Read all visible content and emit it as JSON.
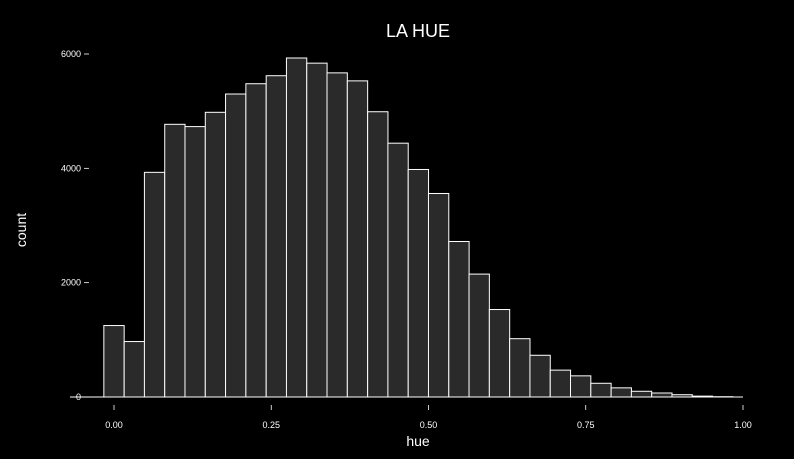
{
  "chart_data": {
    "type": "bar",
    "title": "LA HUE",
    "xlabel": "hue",
    "ylabel": "count",
    "xlim": [
      -0.04,
      1.0
    ],
    "ylim": [
      0,
      6300
    ],
    "x_ticks": [
      0.0,
      0.25,
      0.5,
      0.75,
      1.0
    ],
    "x_tick_labels": [
      "0.00",
      "0.25",
      "0.50",
      "0.75",
      "1.00"
    ],
    "y_ticks": [
      0,
      2000,
      4000,
      6000
    ],
    "y_tick_labels": [
      "0",
      "2000",
      "4000",
      "6000"
    ],
    "grid": false,
    "bin_width": 0.0323,
    "bins": [
      {
        "x": 0.0,
        "value": 1250
      },
      {
        "x": 0.0323,
        "value": 970
      },
      {
        "x": 0.0645,
        "value": 3930
      },
      {
        "x": 0.0968,
        "value": 4770
      },
      {
        "x": 0.129,
        "value": 4730
      },
      {
        "x": 0.1613,
        "value": 4980
      },
      {
        "x": 0.1935,
        "value": 5300
      },
      {
        "x": 0.2258,
        "value": 5480
      },
      {
        "x": 0.2581,
        "value": 5620
      },
      {
        "x": 0.2903,
        "value": 5930
      },
      {
        "x": 0.3226,
        "value": 5840
      },
      {
        "x": 0.3548,
        "value": 5670
      },
      {
        "x": 0.3871,
        "value": 5530
      },
      {
        "x": 0.4194,
        "value": 4990
      },
      {
        "x": 0.4516,
        "value": 4440
      },
      {
        "x": 0.4839,
        "value": 3980
      },
      {
        "x": 0.5161,
        "value": 3560
      },
      {
        "x": 0.5484,
        "value": 2720
      },
      {
        "x": 0.5806,
        "value": 2150
      },
      {
        "x": 0.6129,
        "value": 1530
      },
      {
        "x": 0.6452,
        "value": 1020
      },
      {
        "x": 0.6774,
        "value": 730
      },
      {
        "x": 0.7097,
        "value": 470
      },
      {
        "x": 0.7419,
        "value": 370
      },
      {
        "x": 0.7742,
        "value": 240
      },
      {
        "x": 0.8065,
        "value": 160
      },
      {
        "x": 0.8387,
        "value": 100
      },
      {
        "x": 0.871,
        "value": 70
      },
      {
        "x": 0.9032,
        "value": 40
      },
      {
        "x": 0.9355,
        "value": 15
      },
      {
        "x": 0.9677,
        "value": 5
      }
    ],
    "colors": {
      "background": "#000000",
      "bar_fill": "#2a2a2a",
      "bar_stroke": "#ffffff",
      "text": "#ffffff"
    }
  }
}
